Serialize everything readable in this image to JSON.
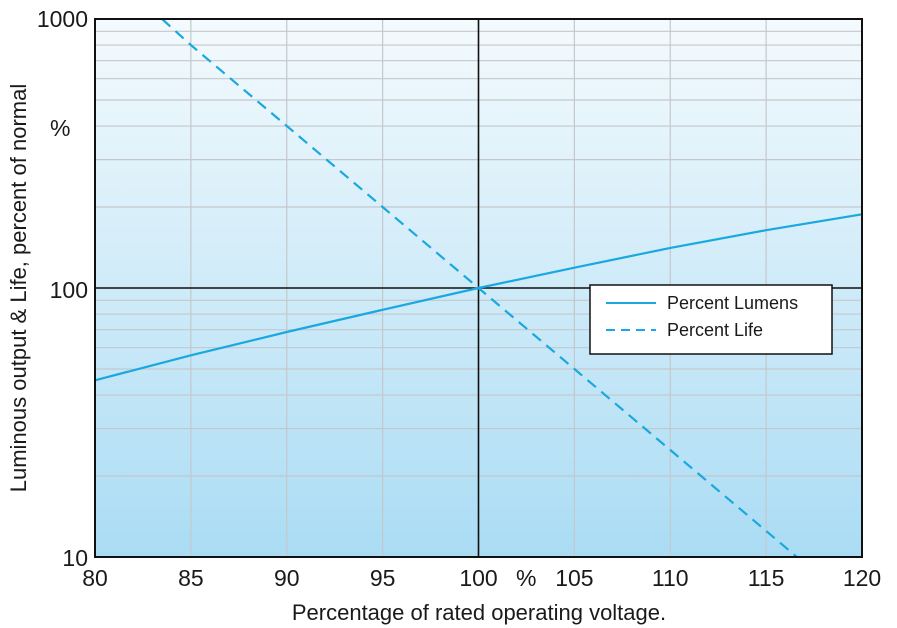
{
  "chart_data": {
    "type": "line",
    "xlabel": "Percentage of rated operating voltage.",
    "ylabel": "Luminous output & Life, percent of normal",
    "x_unit_label": "%",
    "y_unit_label": "%",
    "xlim": [
      80,
      120
    ],
    "ylim": [
      10,
      1000
    ],
    "y_scale": "log",
    "x_ticks": [
      80,
      85,
      90,
      95,
      100,
      105,
      110,
      115,
      120
    ],
    "y_ticks": [
      10,
      100,
      1000
    ],
    "x_tick_labels": [
      "80",
      "85",
      "90",
      "95",
      "100",
      "105",
      "110",
      "115",
      "120"
    ],
    "y_tick_labels": [
      "10",
      "100",
      "1000"
    ],
    "grid": true,
    "legend_position": "right",
    "colors": {
      "series": "#19a8df",
      "background_top": "#f4fafd",
      "background_bottom": "#aadcf4",
      "grid": "#c4c8cc",
      "reference": "#111111"
    },
    "series": [
      {
        "name": "Percent Lumens",
        "style": "solid",
        "x": [
          80,
          85,
          90,
          95,
          100,
          105,
          110,
          115,
          120
        ],
        "y": [
          45.4,
          56.2,
          68.6,
          83,
          100,
          119,
          141,
          164,
          188
        ]
      },
      {
        "name": "Percent Life",
        "style": "dashed",
        "x": [
          83.5,
          85,
          90,
          95,
          100,
          105,
          110,
          115,
          116.6
        ],
        "y": [
          1000,
          800,
          400,
          200,
          100,
          50,
          25,
          12.5,
          10
        ]
      }
    ]
  }
}
